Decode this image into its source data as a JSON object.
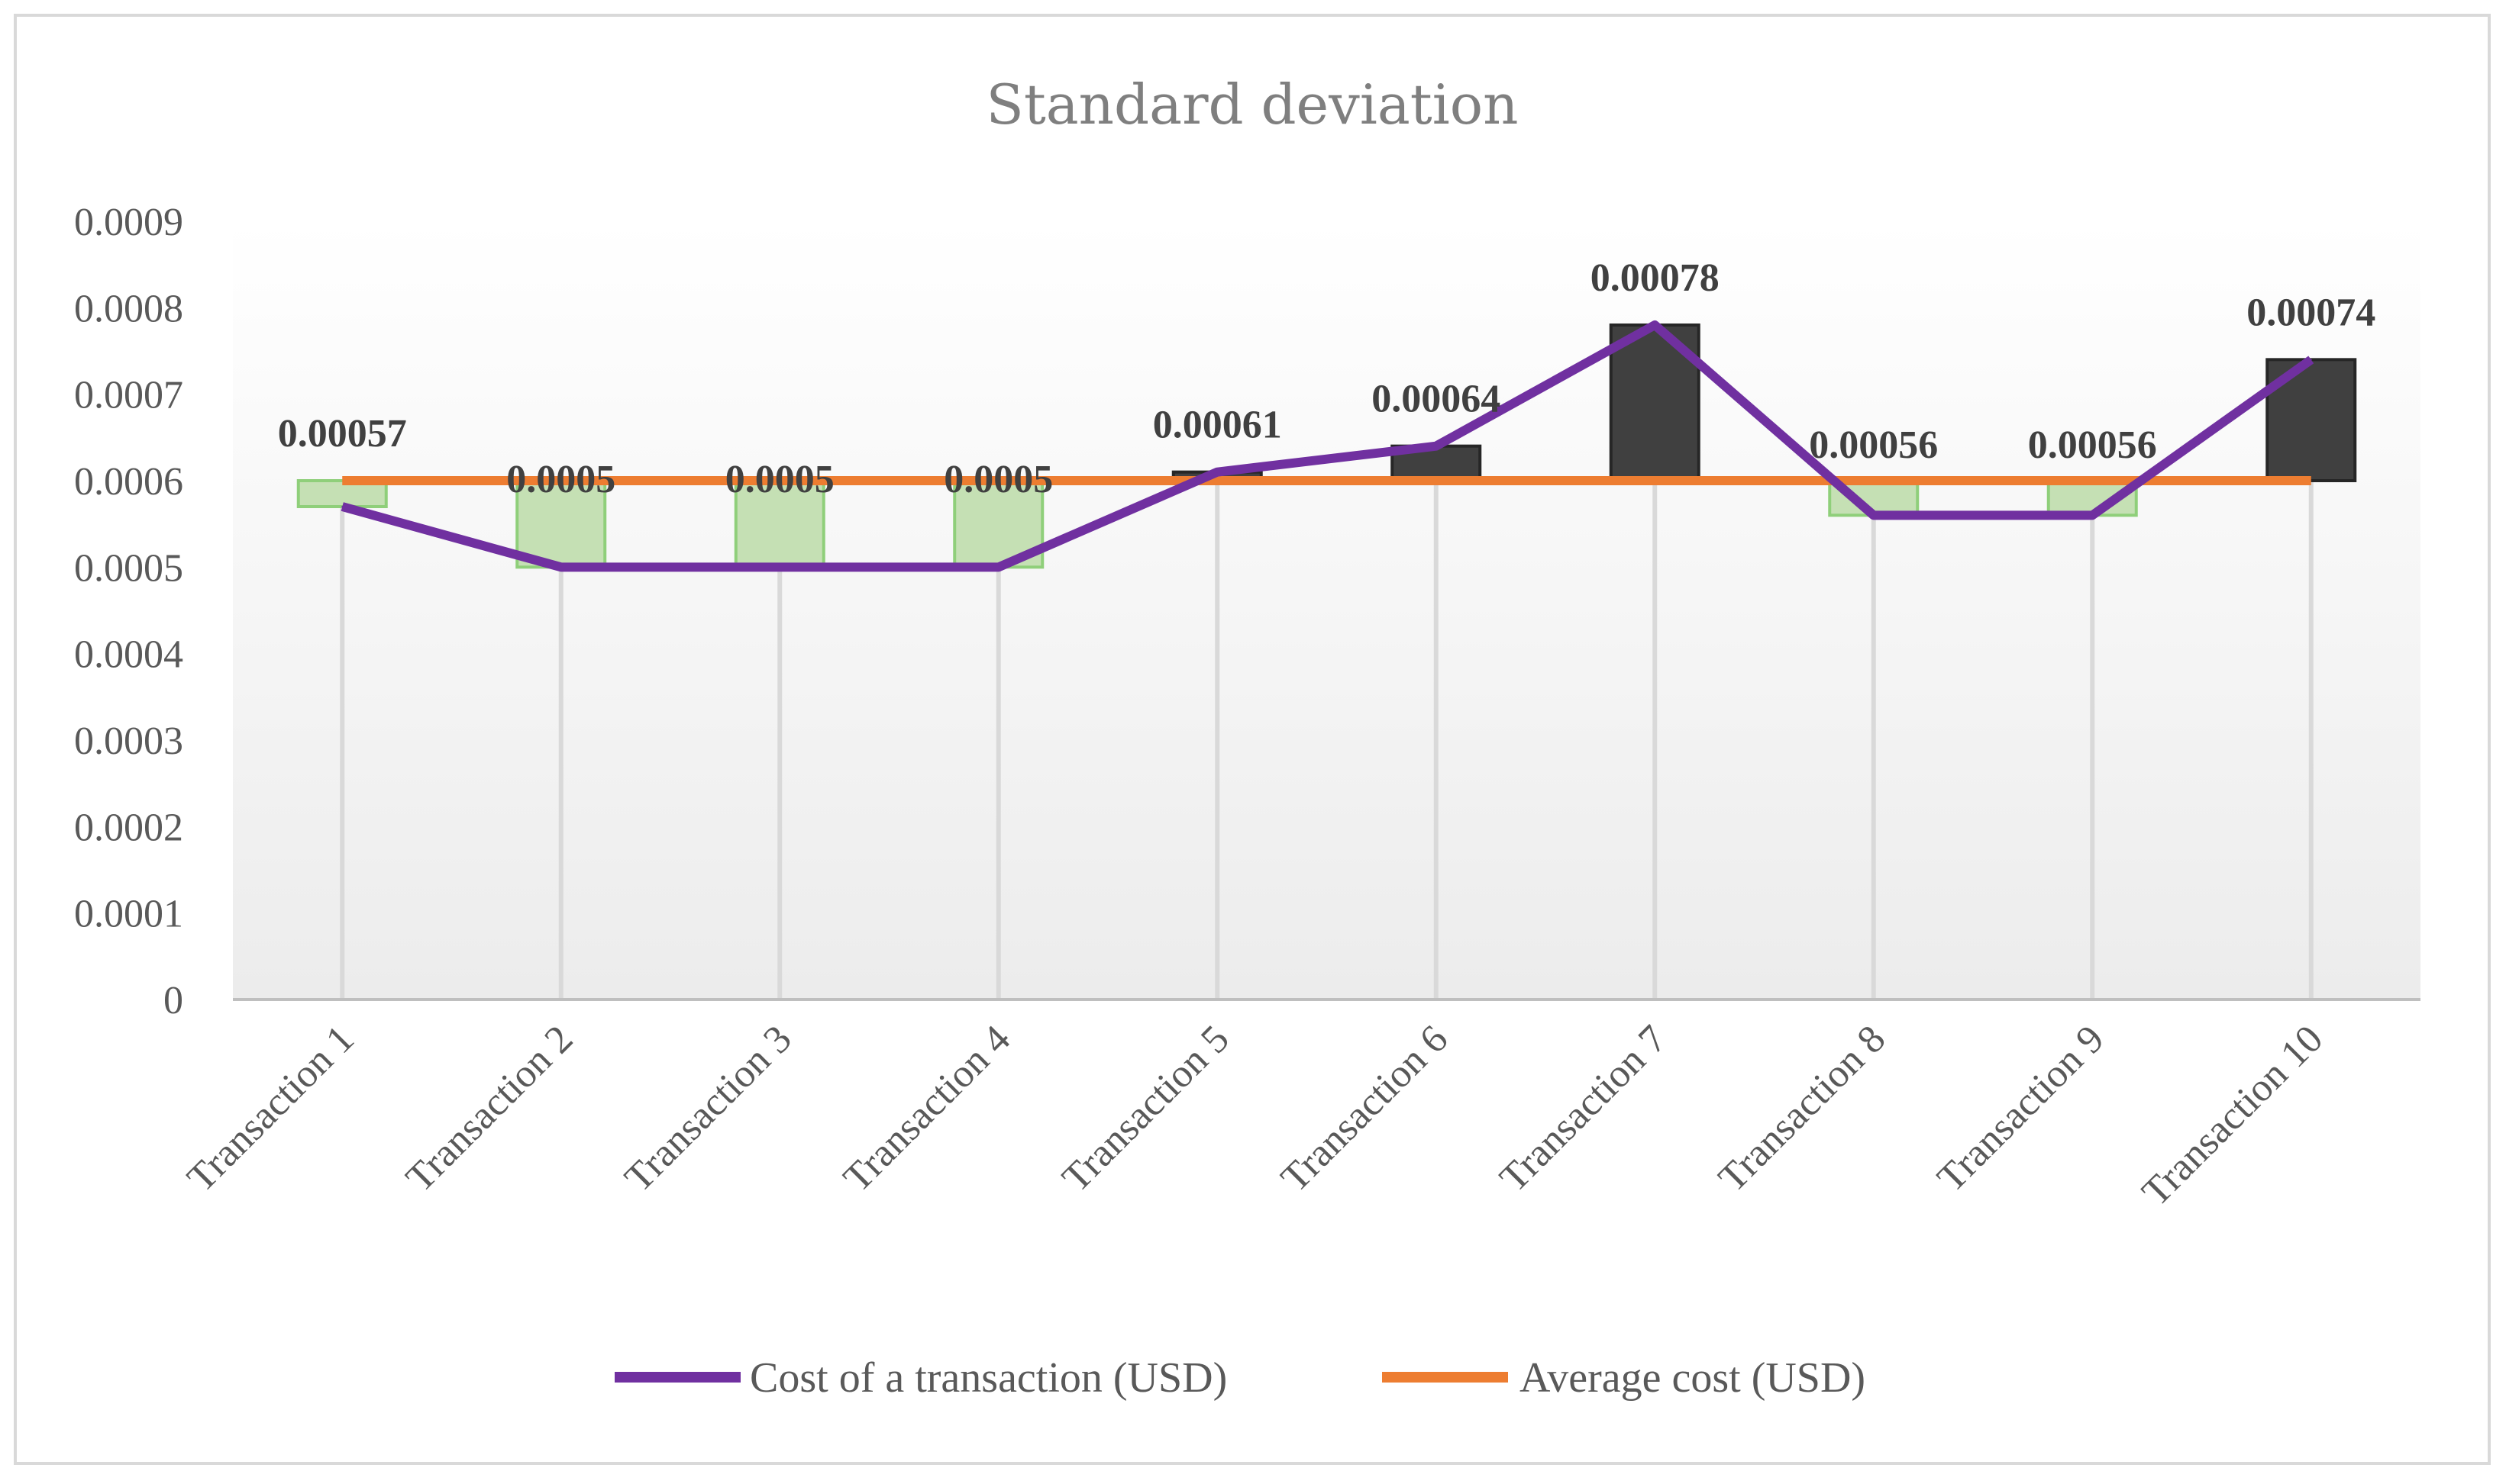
{
  "chart_data": {
    "type": "line",
    "title": "Standard deviation",
    "categories": [
      "Transaction 1",
      "Transaction 2",
      "Transaction 3",
      "Transaction 4",
      "Transaction 5",
      "Transaction 6",
      "Transaction 7",
      "Transaction 8",
      "Transaction 9",
      "Transaction 10"
    ],
    "series": [
      {
        "name": "Cost of a transaction (USD)",
        "color": "#7030a0",
        "values": [
          0.00057,
          0.0005,
          0.0005,
          0.0005,
          0.00061,
          0.00064,
          0.00078,
          0.00056,
          0.00056,
          0.00074
        ]
      },
      {
        "name": "Average cost (USD)",
        "color": "#ed7d31",
        "values": [
          0.0006,
          0.0006,
          0.0006,
          0.0006,
          0.0006,
          0.0006,
          0.0006,
          0.0006,
          0.0006,
          0.0006
        ]
      }
    ],
    "data_labels": [
      "0.00057",
      "0.0005",
      "0.0005",
      "0.0005",
      "0.00061",
      "0.00064",
      "0.00078",
      "0.00056",
      "0.00056",
      "0.00074"
    ],
    "yticks": [
      "0",
      "0.0001",
      "0.0002",
      "0.0003",
      "0.0004",
      "0.0005",
      "0.0006",
      "0.0007",
      "0.0008",
      "0.0009"
    ],
    "ylim": [
      0,
      0.0009
    ],
    "up_bar_color": "#404040",
    "down_bar_color": "#c5e0b4",
    "down_bar_border": "#8fcf7a",
    "legend_position": "bottom",
    "xlabel": "",
    "ylabel": ""
  }
}
